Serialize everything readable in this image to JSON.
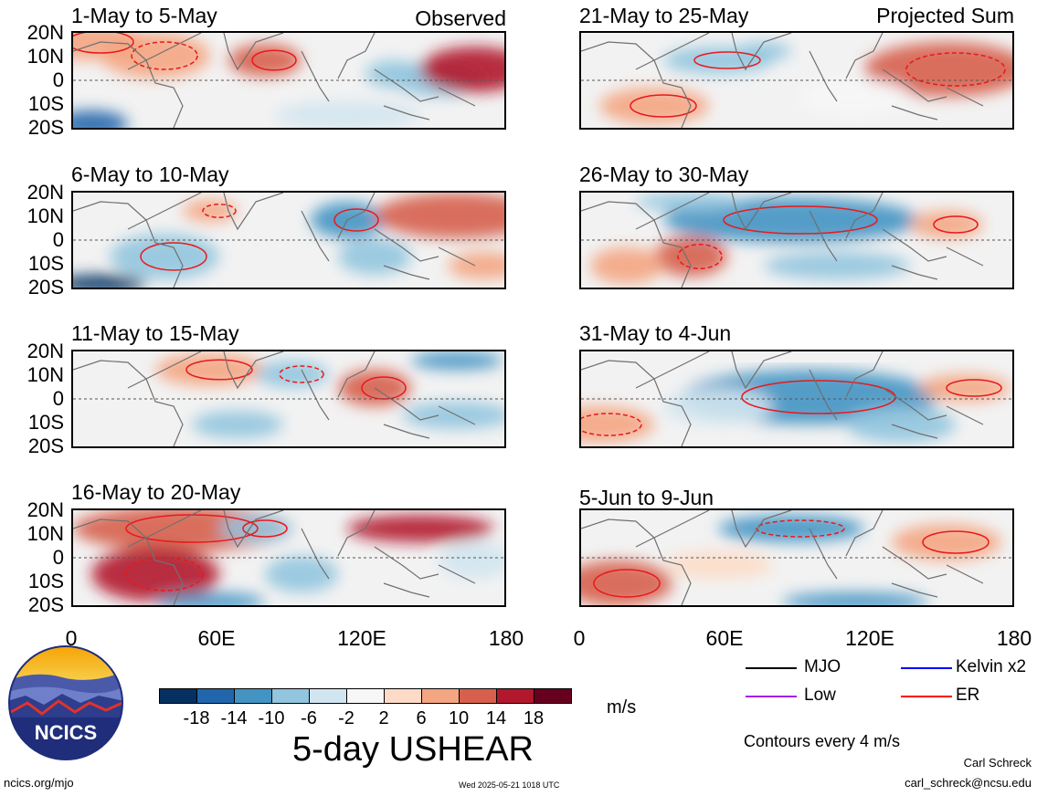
{
  "left_panels": [
    {
      "title": "1-May to 5-May",
      "tag": "Observed"
    },
    {
      "title": "6-May to 10-May",
      "tag": ""
    },
    {
      "title": "11-May to 15-May",
      "tag": ""
    },
    {
      "title": "16-May to 20-May",
      "tag": ""
    }
  ],
  "right_panels": [
    {
      "title": "21-May to 25-May",
      "tag": "Projected Sum"
    },
    {
      "title": "26-May to 30-May",
      "tag": ""
    },
    {
      "title": "31-May to 4-Jun",
      "tag": ""
    },
    {
      "title": "5-Jun to 9-Jun",
      "tag": ""
    }
  ],
  "lat_labels": [
    "20N",
    "10N",
    "0",
    "10S",
    "20S"
  ],
  "lon_labels": [
    "0",
    "60E",
    "120E",
    "180"
  ],
  "colorbar": {
    "colors": [
      "#053061",
      "#2166ac",
      "#4393c3",
      "#92c5de",
      "#d1e5f0",
      "#f7f7f7",
      "#fddbc7",
      "#f4a582",
      "#d6604d",
      "#b2182b",
      "#67001f"
    ],
    "labels": [
      "-18",
      "-14",
      "-10",
      "-6",
      "-2",
      "2",
      "6",
      "10",
      "14",
      "18"
    ]
  },
  "units": "m/s",
  "title": "5-day USHEAR",
  "legend": [
    {
      "label": "MJO",
      "color": "#000000"
    },
    {
      "label": "Kelvin x2",
      "color": "#0000ff"
    },
    {
      "label": "Low",
      "color": "#a020f0"
    },
    {
      "label": "ER",
      "color": "#ff0000"
    }
  ],
  "contour_note": "Contours every 4 m/s",
  "logo_text": "NCICS",
  "author": "Carl Schreck",
  "email": "carl_schreck@ncsu.edu",
  "site": "ncics.org/mjo",
  "timestamp": "Wed 2025-05-21 1018 UTC"
}
